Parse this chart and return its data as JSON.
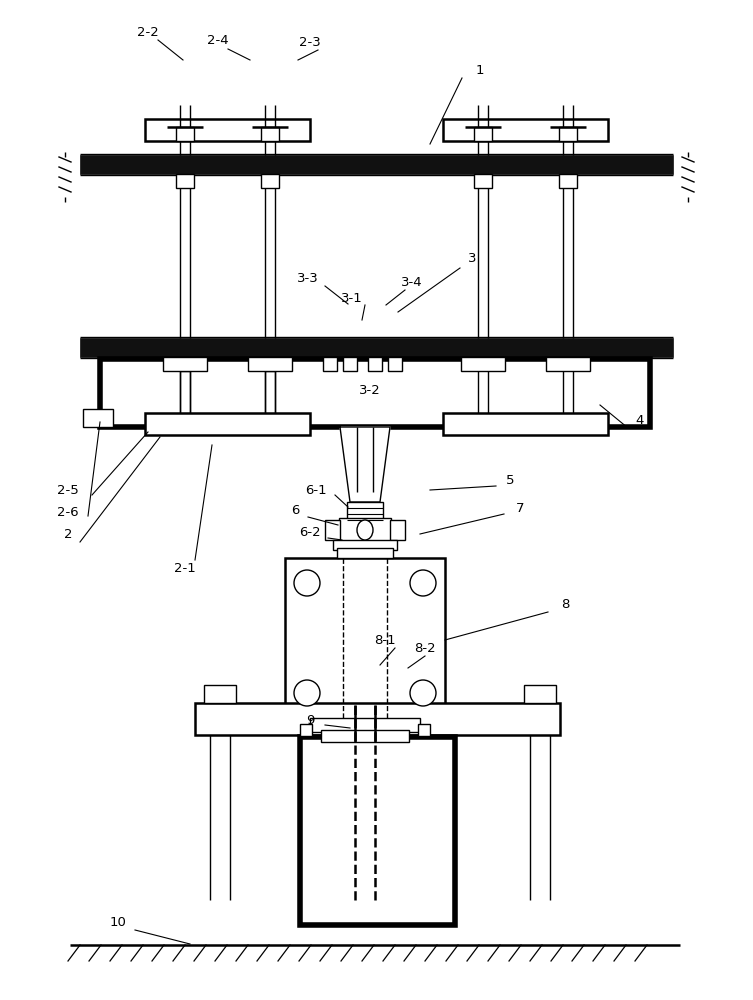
{
  "bg_color": "#ffffff",
  "lc": "#000000",
  "tlw": 4.0,
  "mlw": 1.8,
  "nlw": 1.0,
  "fig_w": 7.53,
  "fig_h": 10.0,
  "dpi": 100
}
